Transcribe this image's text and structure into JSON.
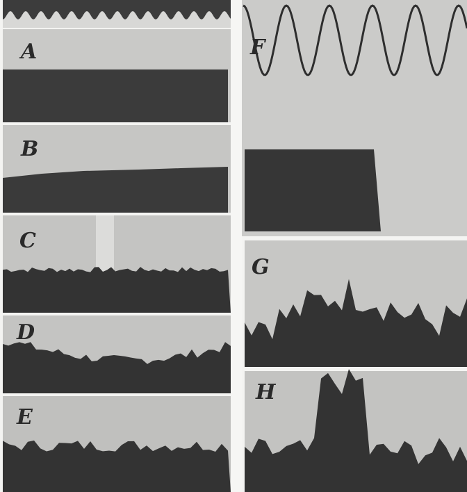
{
  "panels": [
    {
      "label": "A"
    },
    {
      "label": "B"
    },
    {
      "label": "C"
    },
    {
      "label": "D"
    },
    {
      "label": "E"
    },
    {
      "label": "F"
    },
    {
      "label": "G"
    },
    {
      "label": "H"
    }
  ]
}
